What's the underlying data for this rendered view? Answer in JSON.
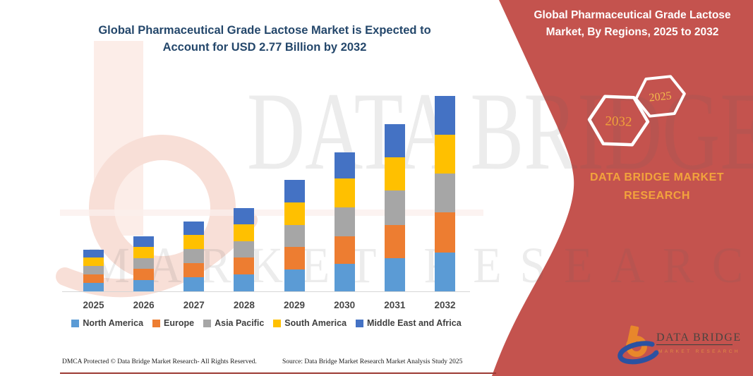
{
  "main_title": {
    "line1": "Global Pharmaceutical Grade Lactose Market is Expected to",
    "line2": "Account for USD 2.77 Billion by 2032"
  },
  "chart_data": {
    "type": "bar",
    "stacked": true,
    "title": "Global Pharmaceutical Grade Lactose Market is Expected to Account for USD 2.77 Billion by 2032",
    "unit": "USD billion",
    "value_axis_visible": false,
    "grid": false,
    "legend_position": "bottom",
    "categories": [
      "2025",
      "2026",
      "2027",
      "2028",
      "2029",
      "2030",
      "2031",
      "2032"
    ],
    "totals": [
      0.59,
      0.78,
      0.99,
      1.18,
      1.58,
      1.97,
      2.37,
      2.77
    ],
    "series": [
      {
        "name": "North America",
        "color": "#5B9BD5",
        "values": [
          0.12,
          0.16,
          0.2,
          0.24,
          0.31,
          0.39,
          0.47,
          0.55
        ]
      },
      {
        "name": "Europe",
        "color": "#ED7D31",
        "values": [
          0.12,
          0.16,
          0.2,
          0.24,
          0.32,
          0.39,
          0.47,
          0.57
        ]
      },
      {
        "name": "Asia Pacific",
        "color": "#A6A6A6",
        "values": [
          0.12,
          0.15,
          0.2,
          0.23,
          0.31,
          0.41,
          0.49,
          0.55
        ]
      },
      {
        "name": "South America",
        "color": "#FFC000",
        "values": [
          0.12,
          0.16,
          0.2,
          0.24,
          0.32,
          0.41,
          0.47,
          0.55
        ]
      },
      {
        "name": "Middle East and Africa",
        "color": "#4472C4",
        "values": [
          0.11,
          0.15,
          0.19,
          0.23,
          0.32,
          0.37,
          0.47,
          0.55
        ]
      }
    ]
  },
  "panel": {
    "title_line1": "Global Pharmaceutical Grade Lactose",
    "title_line2": "Market, By Regions, 2025 to 2032",
    "hex_large_label": "2032",
    "hex_small_label": "2025",
    "brand_line1": "DATA BRIDGE MARKET",
    "brand_line2": "RESEARCH",
    "logo_text": "DATA BRIDGE",
    "logo_subtext": "MARKET RESEARCH",
    "background_color": "#C4534E"
  },
  "watermark": {
    "line1": "DATA BRIDGE",
    "line2": "MARKET RESEARCH"
  },
  "footer": {
    "dmca": "DMCA Protected © Data Bridge Market Research-  All Rights Reserved.",
    "source": "Source: Data Bridge Market Research  Market Analysis Study 2025"
  },
  "colors": {
    "title_text": "#24476B",
    "panel_red": "#C4534E",
    "gold_text": "#F2A33C",
    "footer_rule": "#9C3A34"
  }
}
